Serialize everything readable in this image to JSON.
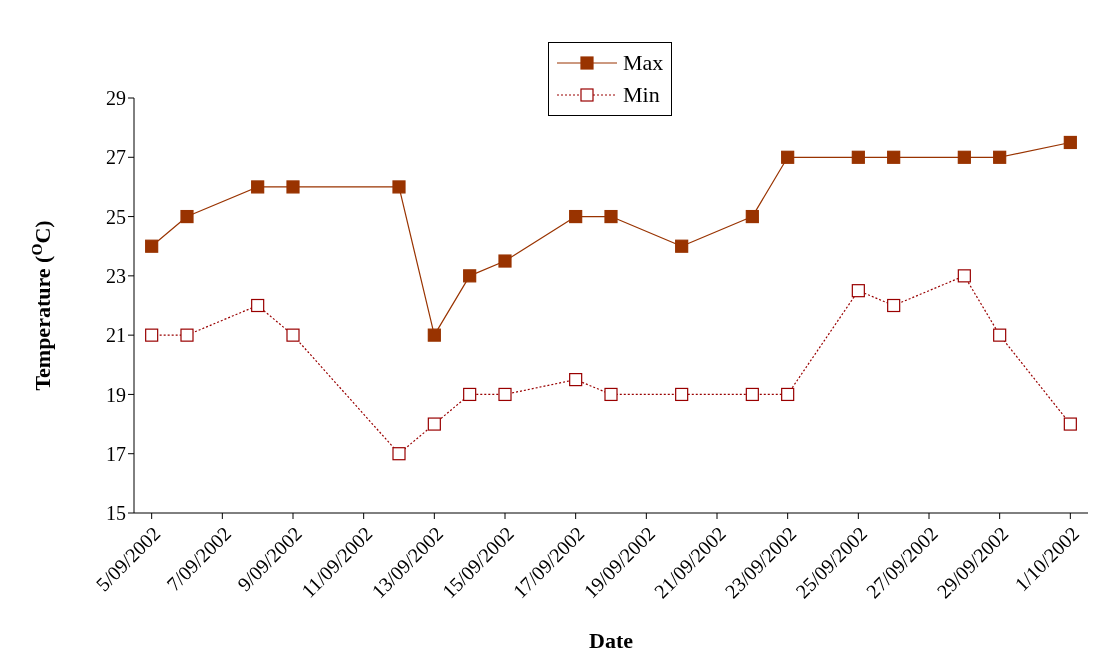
{
  "chart_data": {
    "type": "line",
    "xlabel": "Date",
    "ylabel": "Temperature ($^{O}$C)",
    "x": [
      "2002-09-05",
      "2002-09-06",
      "2002-09-08",
      "2002-09-09",
      "2002-09-12",
      "2002-09-13",
      "2002-09-14",
      "2002-09-15",
      "2002-09-17",
      "2002-09-18",
      "2002-09-20",
      "2002-09-22",
      "2002-09-23",
      "2002-09-25",
      "2002-09-26",
      "2002-09-28",
      "2002-09-29",
      "2002-10-01"
    ],
    "series": [
      {
        "name": "Max",
        "color": "#993300",
        "line_style": "solid",
        "values": [
          24,
          25,
          26,
          26,
          26,
          21,
          23,
          23.5,
          25,
          25,
          24,
          25,
          27,
          27,
          27,
          27,
          27,
          27.5
        ]
      },
      {
        "name": "Min",
        "color": "#990000",
        "line_style": "dotted",
        "values": [
          21,
          21,
          22,
          21,
          17,
          18,
          19,
          19,
          19.5,
          19,
          19,
          19,
          19,
          22.5,
          22,
          23,
          21,
          18
        ]
      }
    ],
    "xlim": [
      "2002-09-04T12:00",
      "2002-10-01T12:00"
    ],
    "xticks": [
      {
        "value": "2002-09-05",
        "label": "5/09/2002"
      },
      {
        "value": "2002-09-07",
        "label": "7/09/2002"
      },
      {
        "value": "2002-09-09",
        "label": "9/09/2002"
      },
      {
        "value": "2002-09-11",
        "label": "11/09/2002"
      },
      {
        "value": "2002-09-13",
        "label": "13/09/2002"
      },
      {
        "value": "2002-09-15",
        "label": "15/09/2002"
      },
      {
        "value": "2002-09-17",
        "label": "17/09/2002"
      },
      {
        "value": "2002-09-19",
        "label": "19/09/2002"
      },
      {
        "value": "2002-09-21",
        "label": "21/09/2002"
      },
      {
        "value": "2002-09-23",
        "label": "23/09/2002"
      },
      {
        "value": "2002-09-25",
        "label": "25/09/2002"
      },
      {
        "value": "2002-09-27",
        "label": "27/09/2002"
      },
      {
        "value": "2002-09-29",
        "label": "29/09/2002"
      },
      {
        "value": "2002-10-01",
        "label": "1/10/2002"
      }
    ],
    "ylim": [
      15,
      29
    ],
    "yticks": [
      15,
      17,
      19,
      21,
      23,
      25,
      27,
      29
    ],
    "grid": false,
    "legend": "top",
    "marker": "square"
  }
}
